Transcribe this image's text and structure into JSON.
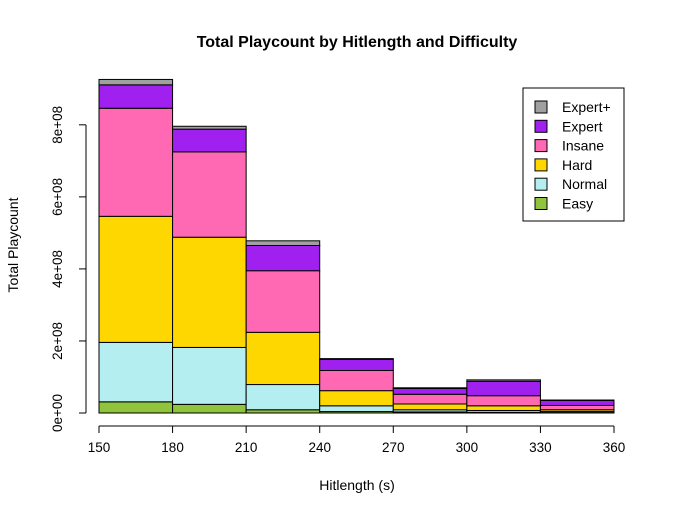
{
  "chart_data": {
    "type": "bar",
    "stacked": true,
    "title": "Total Playcount by Hitlength and Difficulty",
    "xlabel": "Hitlength (s)",
    "ylabel": "Total Playcount",
    "x_bins": [
      150,
      180,
      210,
      240,
      270,
      300,
      330,
      360
    ],
    "x_ticks": [
      150,
      180,
      210,
      240,
      270,
      300,
      330,
      360
    ],
    "x_tick_labels": [
      "150",
      "180",
      "210",
      "240",
      "270",
      "300",
      "330",
      "360"
    ],
    "y_ticks": [
      0,
      200000000,
      400000000,
      600000000,
      800000000
    ],
    "y_tick_labels": [
      "0e+00",
      "2e+08",
      "4e+08",
      "6e+08",
      "8e+08"
    ],
    "ylim": [
      0,
      930000000
    ],
    "legend_position": "top-right",
    "series": [
      {
        "name": "Easy",
        "color": "#8fc43c",
        "values": [
          31000000,
          24000000,
          9000000,
          4000000,
          3000000,
          2000000,
          1000000
        ]
      },
      {
        "name": "Normal",
        "color": "#b4eef0",
        "values": [
          165000000,
          158000000,
          70000000,
          16000000,
          6000000,
          5000000,
          3000000
        ]
      },
      {
        "name": "Hard",
        "color": "#ffd700",
        "values": [
          350000000,
          306000000,
          145000000,
          42000000,
          16000000,
          13000000,
          5000000
        ]
      },
      {
        "name": "Insane",
        "color": "#ff69b4",
        "values": [
          300000000,
          237000000,
          171000000,
          56000000,
          27000000,
          28000000,
          12000000
        ]
      },
      {
        "name": "Expert",
        "color": "#a020f0",
        "values": [
          65000000,
          63000000,
          70000000,
          31000000,
          16000000,
          40000000,
          14000000
        ]
      },
      {
        "name": "Expert+",
        "color": "#a0a0a0",
        "values": [
          15000000,
          8000000,
          13000000,
          2000000,
          2000000,
          4000000,
          1000000
        ]
      }
    ]
  }
}
